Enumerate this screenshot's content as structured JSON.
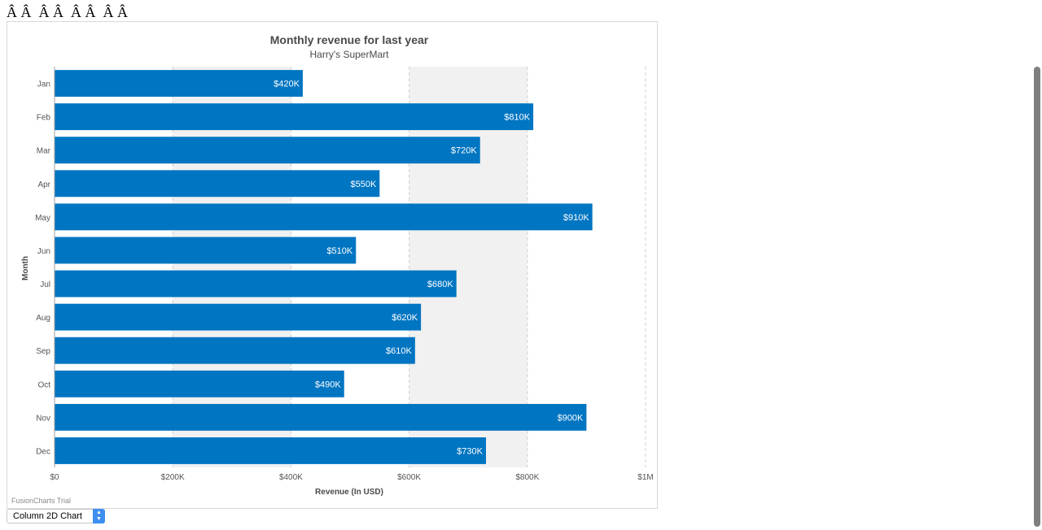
{
  "page": {
    "garbled_text": "Â Â  Â Â  Â Â  Â Â"
  },
  "chart_data": {
    "type": "bar",
    "orientation": "horizontal",
    "title": "Monthly revenue for last year",
    "subtitle": "Harry's SuperMart",
    "xlabel": "Revenue (In USD)",
    "ylabel": "Month",
    "categories": [
      "Jan",
      "Feb",
      "Mar",
      "Apr",
      "May",
      "Jun",
      "Jul",
      "Aug",
      "Sep",
      "Oct",
      "Nov",
      "Dec"
    ],
    "values": [
      420000,
      810000,
      720000,
      550000,
      910000,
      510000,
      680000,
      620000,
      610000,
      490000,
      900000,
      730000
    ],
    "value_labels": [
      "$420K",
      "$810K",
      "$720K",
      "$550K",
      "$910K",
      "$510K",
      "$680K",
      "$620K",
      "$610K",
      "$490K",
      "$900K",
      "$730K"
    ],
    "xlim": [
      0,
      1000000
    ],
    "x_ticks": [
      0,
      200000,
      400000,
      600000,
      800000,
      1000000
    ],
    "x_tick_labels": [
      "$0",
      "$200K",
      "$400K",
      "$600K",
      "$800K",
      "$1M"
    ],
    "grid": true,
    "alternate_bands": true,
    "bar_color": "#0075c2",
    "band_color": "#f1f1f1",
    "gridline_color": "#cfcfcf"
  },
  "watermark": "FusionCharts Trial",
  "chart_type_select": {
    "selected": "Column 2D Chart"
  }
}
